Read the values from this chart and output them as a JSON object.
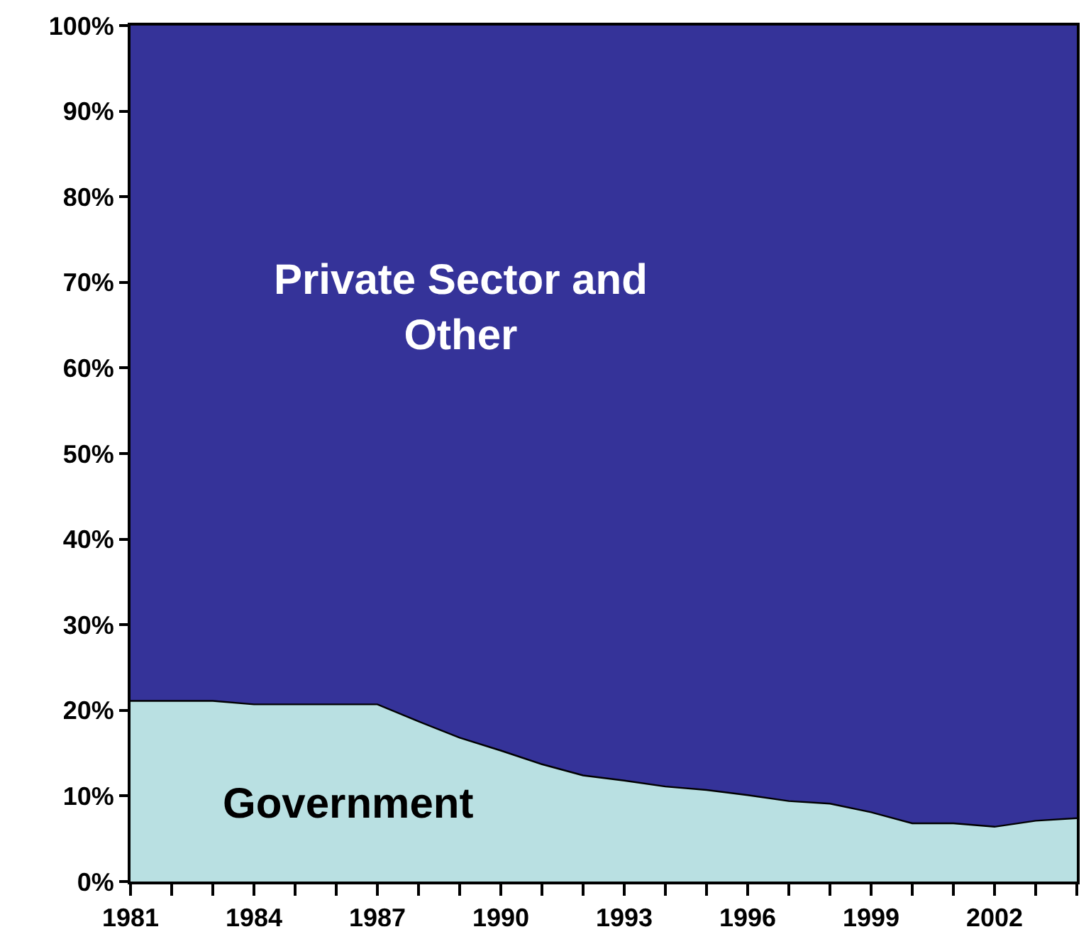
{
  "chart_data": {
    "type": "area",
    "stacked": true,
    "x": [
      1981,
      1982,
      1983,
      1984,
      1985,
      1986,
      1987,
      1988,
      1989,
      1990,
      1991,
      1992,
      1993,
      1994,
      1995,
      1996,
      1997,
      1998,
      1999,
      2000,
      2001,
      2002,
      2003,
      2004
    ],
    "series": [
      {
        "name": "Government",
        "color": "#b9e0e2",
        "values": [
          21.1,
          21.1,
          21.1,
          20.7,
          20.7,
          20.7,
          20.7,
          18.7,
          16.8,
          15.3,
          13.7,
          12.4,
          11.8,
          11.1,
          10.7,
          10.1,
          9.4,
          9.1,
          8.1,
          6.8,
          6.8,
          6.4,
          7.1,
          7.4
        ]
      },
      {
        "name": "Private Sector and Other",
        "color": "#353399",
        "values": [
          78.9,
          78.9,
          78.9,
          79.3,
          79.3,
          79.3,
          79.3,
          81.3,
          83.2,
          84.7,
          86.3,
          87.6,
          88.2,
          88.9,
          89.3,
          89.9,
          90.6,
          90.9,
          91.9,
          93.2,
          93.2,
          93.6,
          92.9,
          92.6
        ]
      }
    ],
    "xlim": [
      1981,
      2004
    ],
    "xticks": [
      1981,
      {
        "value": 1982,
        "label": null
      },
      {
        "value": 1983,
        "label": null
      },
      1984,
      {
        "value": 1985,
        "label": null
      },
      {
        "value": 1986,
        "label": null
      },
      1987,
      {
        "value": 1988,
        "label": null
      },
      {
        "value": 1989,
        "label": null
      },
      1990,
      {
        "value": 1991,
        "label": null
      },
      {
        "value": 1992,
        "label": null
      },
      1993,
      {
        "value": 1994,
        "label": null
      },
      {
        "value": 1995,
        "label": null
      },
      1996,
      {
        "value": 1997,
        "label": null
      },
      {
        "value": 1998,
        "label": null
      },
      1999,
      {
        "value": 2000,
        "label": null
      },
      {
        "value": 2001,
        "label": null
      },
      2002,
      {
        "value": 2003,
        "label": null
      },
      {
        "value": 2004,
        "label": null
      }
    ],
    "ylim": [
      0,
      100
    ],
    "yticks": [
      {
        "value": 0,
        "label": "0%"
      },
      {
        "value": 10,
        "label": "10%"
      },
      {
        "value": 20,
        "label": "20%"
      },
      {
        "value": 30,
        "label": "30%"
      },
      {
        "value": 40,
        "label": "40%"
      },
      {
        "value": 50,
        "label": "50%"
      },
      {
        "value": 60,
        "label": "60%"
      },
      {
        "value": 70,
        "label": "70%"
      },
      {
        "value": 80,
        "label": "80%"
      },
      {
        "value": 90,
        "label": "90%"
      },
      {
        "value": 100,
        "label": "100%"
      }
    ],
    "legend": false
  }
}
